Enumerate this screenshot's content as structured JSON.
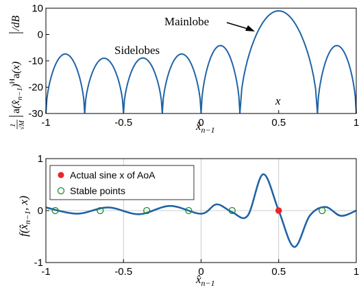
{
  "chart_data": [
    {
      "type": "line",
      "title": "",
      "xlabel": "x̂_{n−1}",
      "ylabel": "(1/√M)|a(x̂_{n−1})^H a(x)| /dB",
      "xlim": [
        -1,
        1
      ],
      "ylim": [
        -30,
        10
      ],
      "xticks": [
        "-1",
        "-0.5",
        "0",
        "0.5",
        "1"
      ],
      "yticks": [
        "10",
        "0",
        "-10",
        "-20",
        "-30"
      ],
      "grid": false,
      "series": [
        {
          "x": [
            -1,
            -0.88,
            -0.75,
            -0.63,
            -0.5,
            -0.38,
            -0.25,
            -0.13,
            0,
            0.12,
            0.25,
            0.5,
            0.75,
            0.88,
            1
          ],
          "y": [
            -30,
            -7.4,
            -30,
            -9,
            -30,
            -8.9,
            -30,
            -7.4,
            -30,
            -4.2,
            -30,
            9,
            -30,
            -4.2,
            -30
          ]
        }
      ],
      "annotations": [
        {
          "text": "Mainlobe",
          "x": 0.5,
          "y": 9
        },
        {
          "text": "Sidelobes",
          "x": -0.5,
          "y": -3
        },
        {
          "text": "x",
          "x": 0.5,
          "y": -24
        }
      ]
    },
    {
      "type": "line",
      "title": "",
      "xlabel": "x̂_{n−1}",
      "ylabel": "f(x̂_{n−1}, x)",
      "xlim": [
        -1,
        1
      ],
      "ylim": [
        -1,
        1
      ],
      "xticks": [
        "-1",
        "-0.5",
        "0",
        "0.5",
        "1"
      ],
      "yticks": [
        "1",
        "0",
        "-1"
      ],
      "grid": true,
      "legend_position": "top-left",
      "series": [
        {
          "x": [
            -1,
            -0.8,
            -0.6,
            -0.4,
            -0.2,
            0,
            0.1,
            0.2,
            0.3,
            0.4,
            0.5,
            0.6,
            0.7,
            0.8,
            0.9,
            1
          ],
          "y": [
            0.06,
            -0.06,
            0.06,
            -0.07,
            0.09,
            -0.06,
            0.12,
            -0.03,
            -0.1,
            0.7,
            0,
            -0.7,
            -0.1,
            0.07,
            -0.1,
            0
          ]
        }
      ],
      "legend": [
        {
          "label": "Actual sine x of AoA",
          "marker": "filled-circle",
          "color": "#e8262d"
        },
        {
          "label": "Stable points",
          "marker": "open-circle",
          "color": "#1a8a2a"
        }
      ],
      "actual_point": {
        "x": 0.5,
        "y": 0
      },
      "stable_points": [
        -0.94,
        -0.65,
        -0.35,
        -0.08,
        0.2,
        0.78
      ]
    }
  ],
  "text": {
    "top_xlabel_main": "x̂",
    "top_xlabel_sub": "n−1",
    "top_ylabel_frac_num": "1",
    "top_ylabel_frac_den": "√M",
    "top_ylabel_a1": "a",
    "top_ylabel_arg1": "(x̂",
    "top_ylabel_sub1": "n−1",
    "top_ylabel_close1": ")",
    "top_ylabel_sup": "H",
    "top_ylabel_a2": "a",
    "top_ylabel_arg2": "(x)",
    "top_ylabel_unit": "/dB",
    "mainlobe": "Mainlobe",
    "sidelobes": "Sidelobes",
    "x_marker": "x",
    "bot_xlabel_main": "x̂",
    "bot_xlabel_sub": "n−1",
    "bot_ylabel_f": "f",
    "bot_ylabel_arg": "(x̂",
    "bot_ylabel_sub": "n−1",
    "bot_ylabel_rest": ", x)",
    "legend_actual": "Actual sine x of AoA",
    "legend_stable": "Stable points"
  },
  "colors": {
    "curve": "#1f63a6",
    "actual": "#e8262d",
    "stable": "#1a8a2a"
  }
}
